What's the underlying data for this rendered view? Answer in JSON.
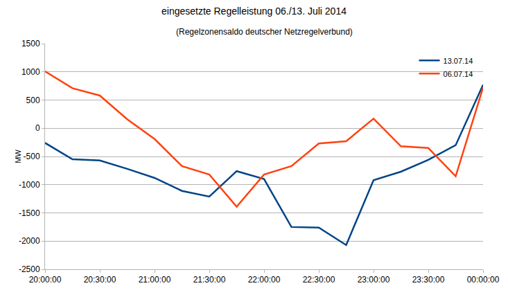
{
  "chart_data": {
    "type": "line",
    "title": "eingesetzte Regelleistung 06./13. Juli 2014",
    "subtitle": "(Regelzonensaldo deutscher Netzregelverbund)",
    "y_label": "MW",
    "categories": [
      "20:00:00",
      null,
      "20:30:00",
      null,
      "21:00:00",
      null,
      "21:30:00",
      null,
      "22:00:00",
      null,
      "22:30:00",
      null,
      "23:00:00",
      null,
      "23:30:00",
      null,
      "00:00:00"
    ],
    "series": [
      {
        "name": "13.07.14",
        "color": "#004586",
        "values": [
          -260,
          -550,
          -570,
          -720,
          -880,
          -1110,
          -1210,
          -760,
          -900,
          -1750,
          -1760,
          -2070,
          -920,
          -770,
          -560,
          -300,
          770
        ]
      },
      {
        "name": "06.07.14",
        "color": "#ff420e",
        "values": [
          1010,
          710,
          580,
          160,
          -190,
          -670,
          -820,
          -1390,
          -820,
          -670,
          -270,
          -230,
          170,
          -320,
          -350,
          -850,
          720
        ]
      }
    ],
    "ylim": [
      -2500,
      1500
    ],
    "yticks": [
      -2500,
      -2000,
      -1500,
      -1000,
      -500,
      0,
      500,
      1000,
      1500
    ],
    "grid": true,
    "legend": "top-right"
  }
}
